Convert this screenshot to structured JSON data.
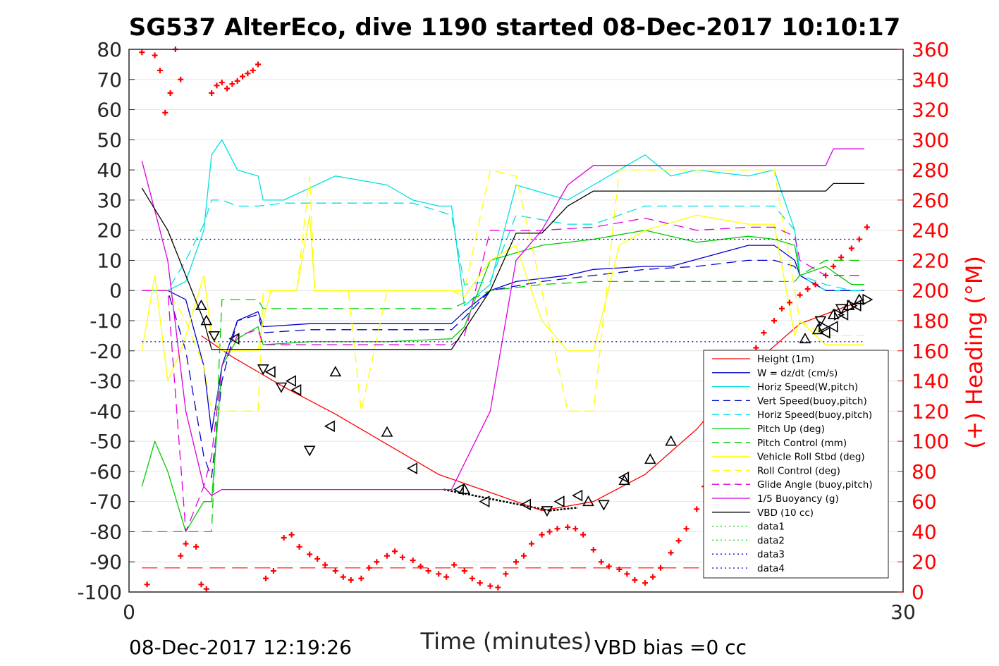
{
  "chart_data": {
    "type": "line",
    "title": "SG537 AlterEco, dive 1190 started 08-Dec-2017 10:10:17",
    "xlabel": "Time (minutes)",
    "ylabel_right": "(+) Heading (°M)",
    "xlim": [
      0,
      30
    ],
    "ylim": [
      -100,
      80
    ],
    "ylim_right": [
      0,
      360
    ],
    "x_ticks": [
      "0",
      "30"
    ],
    "y_ticks": [
      "80",
      "70",
      "60",
      "50",
      "40",
      "30",
      "20",
      "10",
      "0",
      "-10",
      "-20",
      "-30",
      "-40",
      "-50",
      "-60",
      "-70",
      "-80",
      "-90",
      "-100"
    ],
    "y_ticks_right": [
      "360",
      "340",
      "320",
      "300",
      "280",
      "260",
      "240",
      "220",
      "200",
      "180",
      "160",
      "140",
      "120",
      "100",
      "80",
      "60",
      "40",
      "20",
      "0"
    ],
    "grid": "horizontal",
    "legend_position": "bottom-right",
    "colors": {
      "heading": "#ff0000",
      "right_axis": "#ff0000"
    },
    "series": [
      {
        "name": "Height (1m)",
        "color": "#ff0000",
        "dash": "solid",
        "x": [
          2.8,
          4,
          6,
          8,
          10,
          12,
          14,
          16,
          18,
          20,
          22,
          24,
          26,
          28.5
        ],
        "y": [
          -15,
          -22,
          -32,
          -41,
          -51,
          -61,
          -67,
          -73,
          -70,
          -61,
          -46,
          -26,
          -11,
          -3
        ]
      },
      {
        "name": "W = dz/dt (cm/s)",
        "color": "#0000cc",
        "dash": "solid",
        "x": [
          0.5,
          1.5,
          2.2,
          2.9,
          3.2,
          3.6,
          4.2,
          5,
          5.2,
          7,
          10,
          11,
          12.5,
          13,
          14,
          15,
          17,
          18,
          20,
          21,
          24,
          25,
          25.8,
          26,
          27,
          28,
          28.5
        ],
        "y": [
          0,
          0,
          -3,
          -25,
          -47,
          -25,
          -10,
          -7,
          -12,
          -11,
          -11,
          -11,
          -11,
          -7,
          0,
          3,
          5,
          7,
          8,
          8,
          15,
          15,
          10,
          5,
          0,
          0,
          0
        ]
      },
      {
        "name": "Horiz Speed(W,pitch)",
        "color": "#00e0e0",
        "dash": "solid",
        "x": [
          0.5,
          1.5,
          2.2,
          2.9,
          3.2,
          3.6,
          4.2,
          5,
          5.2,
          6,
          8,
          10,
          11,
          12,
          12.5,
          13,
          14,
          15,
          17,
          18,
          20,
          21,
          22,
          24,
          25,
          25.8,
          26,
          27,
          28,
          28.5
        ],
        "y": [
          0,
          0,
          3,
          20,
          45,
          50,
          40,
          38,
          30,
          30,
          38,
          35,
          30,
          28,
          28,
          -5,
          2,
          35,
          30,
          35,
          45,
          38,
          40,
          38,
          40,
          20,
          5,
          0,
          0,
          0
        ]
      },
      {
        "name": "Vert Speed(buoy,pitch)",
        "color": "#0000cc",
        "dash": "dashed",
        "x": [
          0.5,
          1.5,
          2.2,
          2.9,
          3.2,
          3.6,
          4.2,
          5,
          5.2,
          7,
          10,
          12.5,
          13,
          14,
          16,
          18,
          20,
          22,
          24,
          25,
          25.8,
          26,
          27,
          28,
          28.5
        ],
        "y": [
          0,
          0,
          -20,
          -55,
          -62,
          -30,
          -10,
          -8,
          -14,
          -13,
          -13,
          -13,
          -9,
          0,
          3,
          5,
          7,
          8,
          10,
          10,
          8,
          5,
          0,
          0,
          0
        ]
      },
      {
        "name": "Horiz Speed(buoy,pitch)",
        "color": "#00e0e0",
        "dash": "dashed",
        "x": [
          0.5,
          1.5,
          2.2,
          2.9,
          3.2,
          3.6,
          4.2,
          5,
          6,
          8,
          10,
          11,
          12.5,
          13,
          14,
          15,
          17,
          18,
          20,
          22,
          24,
          25,
          25.8,
          26,
          27,
          28,
          28.5
        ],
        "y": [
          0,
          0,
          10,
          22,
          30,
          30,
          28,
          28,
          29,
          29,
          29,
          29,
          25,
          2,
          3,
          25,
          22,
          22,
          28,
          28,
          28,
          28,
          20,
          5,
          2,
          0,
          0
        ]
      },
      {
        "name": "Pitch Up (deg)",
        "color": "#00cc00",
        "dash": "solid",
        "x": [
          0.5,
          1,
          1.5,
          2.2,
          2.9,
          3.2,
          3.6,
          4.2,
          5,
          5.2,
          7,
          10,
          12.5,
          13,
          14,
          16,
          18,
          20,
          22,
          24,
          25,
          25.8,
          26,
          27,
          28,
          28.5
        ],
        "y": [
          -65,
          -50,
          -60,
          -80,
          -70,
          -70,
          -25,
          -16,
          -12,
          -18,
          -17,
          -17,
          -16,
          -12,
          10,
          15,
          17,
          20,
          16,
          18,
          17,
          15,
          5,
          8,
          2,
          2
        ]
      },
      {
        "name": "Pitch Control (mm)",
        "color": "#00cc00",
        "dash": "dashed",
        "x": [
          0.5,
          1.5,
          2.2,
          2.9,
          3.2,
          3.6,
          4.2,
          5,
          5.2,
          7,
          10,
          12.5,
          13,
          14,
          16,
          18,
          20,
          22,
          24,
          25,
          25.8,
          26,
          27,
          28.5
        ],
        "y": [
          -80,
          -80,
          -80,
          -80,
          -80,
          -3,
          -3,
          -3,
          -6,
          -6,
          -6,
          -6,
          -4,
          0,
          2,
          3,
          3,
          3,
          3,
          3,
          3,
          5,
          10,
          10
        ]
      },
      {
        "name": "Vehicle Roll Stbd (deg)",
        "color": "#ffff00",
        "dash": "solid",
        "x": [
          0.5,
          1,
          1.5,
          2,
          2.2,
          2.9,
          3.2,
          3.6,
          4.2,
          5,
          5.2,
          5.5,
          6.5,
          7,
          7.2,
          8.5,
          9,
          12.5,
          13,
          14,
          15,
          16,
          17,
          18,
          19,
          20,
          22,
          24,
          25,
          25.8,
          26,
          27,
          28.5
        ],
        "y": [
          -20,
          5,
          -30,
          -20,
          -15,
          5,
          -15,
          -20,
          -20,
          -20,
          -10,
          0,
          0,
          25,
          0,
          0,
          0,
          0,
          -2,
          10,
          15,
          -10,
          -20,
          -20,
          15,
          20,
          25,
          22,
          22,
          -15,
          -10,
          -18,
          -18
        ]
      },
      {
        "name": "Roll Control (deg)",
        "color": "#ffff00",
        "dash": "dashed",
        "x": [
          0.5,
          1.5,
          2.2,
          2.9,
          3.2,
          3.6,
          4.2,
          5,
          5.2,
          6.5,
          7,
          7.2,
          8.5,
          9,
          10,
          12.5,
          13,
          14,
          15,
          16,
          17,
          18,
          19,
          20,
          22,
          24,
          25,
          25.8,
          26,
          27,
          28.5
        ],
        "y": [
          0,
          0,
          -10,
          -25,
          -40,
          -40,
          -40,
          -40,
          0,
          0,
          38,
          0,
          0,
          -40,
          0,
          0,
          0,
          40,
          38,
          0,
          -40,
          -40,
          40,
          40,
          40,
          40,
          40,
          0,
          -10,
          -15,
          -15
        ]
      },
      {
        "name": "Glide Angle (buoy,pitch)",
        "color": "#dd00dd",
        "dash": "dashed",
        "x": [
          0.5,
          1.5,
          2.2,
          2.9,
          3.2,
          3.6,
          4.2,
          5,
          5.2,
          7,
          10,
          12.5,
          13,
          14,
          16,
          18,
          20,
          22,
          24,
          25,
          25.8,
          26,
          27,
          28.5
        ],
        "y": [
          0,
          0,
          -80,
          -65,
          -55,
          -25,
          -15,
          -13,
          -18,
          -18,
          -18,
          -18,
          -15,
          20,
          20,
          21,
          24,
          20,
          21,
          21,
          18,
          10,
          5,
          5
        ]
      },
      {
        "name": "1/5 Buoyancy (g)",
        "color": "#dd00dd",
        "dash": "solid",
        "x": [
          0.5,
          1.5,
          2.2,
          2.9,
          3.2,
          3.6,
          4.2,
          5,
          10,
          12,
          12.5,
          14,
          15,
          16,
          17,
          18,
          19,
          20,
          24,
          25,
          26,
          27,
          27.3,
          28.5
        ],
        "y": [
          43,
          10,
          -40,
          -65,
          -68,
          -66,
          -66,
          -66,
          -66,
          -66,
          -66,
          -40,
          10,
          20,
          35,
          41.5,
          41.5,
          41.5,
          41.5,
          41.5,
          41.5,
          41.5,
          47,
          47
        ]
      },
      {
        "name": "VBD (10 cc)",
        "color": "#000000",
        "dash": "solid",
        "x": [
          0.5,
          1.5,
          2.2,
          2.9,
          3.2,
          4,
          10,
          12,
          12.5,
          14,
          15,
          16,
          17,
          18,
          19,
          20,
          24,
          25,
          26,
          27,
          27.3,
          28.5
        ],
        "y": [
          34,
          20,
          5,
          -10,
          -19.5,
          -19.5,
          -19.5,
          -19.5,
          -19.5,
          0,
          19,
          19,
          28,
          33,
          33,
          33,
          33,
          33,
          33,
          33,
          35.5,
          35.5
        ]
      },
      {
        "name": "data1",
        "color": "#00cc00",
        "dash": "dotted",
        "x": [],
        "y": []
      },
      {
        "name": "data2",
        "color": "#00cc00",
        "dash": "dotted",
        "x": [],
        "y": []
      },
      {
        "name": "data3",
        "color": "#0000cc",
        "dash": "dotted",
        "x": [
          0.5,
          28.5
        ],
        "y": [
          17,
          17
        ]
      },
      {
        "name": "data4",
        "color": "#0000cc",
        "dash": "dotted",
        "x": [
          0.5,
          28.5
        ],
        "y": [
          -17,
          -17
        ]
      }
    ],
    "extra_lines": [
      {
        "color": "#ff0000",
        "dash": "longdash",
        "x": [
          0.5,
          28.5
        ],
        "y": [
          -92,
          -92
        ]
      },
      {
        "color": "#000000",
        "dash": "dotted-heavy",
        "x": [
          12.2,
          16.3
        ],
        "y": [
          -66,
          -73
        ]
      },
      {
        "color": "#000000",
        "dash": "dotted-heavy",
        "x": [
          16.3,
          17.4
        ],
        "y": [
          -73,
          -72
        ]
      }
    ],
    "heading_points": {
      "axis": "right",
      "color": "#ff0000",
      "x": [
        0.5,
        1,
        1.2,
        1.4,
        1.6,
        1.8,
        2.0,
        2.2,
        2.6,
        2.8,
        3.0,
        3.2,
        3.4,
        3.6,
        3.8,
        4.0,
        4.2,
        4.4,
        4.6,
        4.8,
        5.0,
        0.7,
        2.0,
        5.3,
        5.6,
        6.0,
        6.3,
        6.6,
        7.0,
        7.3,
        7.6,
        8.0,
        8.3,
        8.6,
        9.0,
        9.3,
        9.6,
        10.0,
        10.3,
        10.6,
        11.0,
        11.3,
        11.6,
        12.0,
        12.3,
        12.6,
        13.0,
        13.3,
        13.6,
        14.0,
        14.3,
        14.6,
        15.0,
        15.3,
        15.6,
        16.0,
        16.3,
        16.6,
        17.0,
        17.3,
        17.6,
        18.0,
        18.3,
        18.6,
        19.0,
        19.3,
        19.6,
        20.0,
        20.3,
        20.6,
        21.0,
        21.3,
        21.6,
        22.0,
        22.3,
        22.6,
        23.0,
        23.3,
        23.6,
        24.0,
        24.3,
        24.6,
        25.0,
        25.3,
        25.6,
        26.0,
        26.3,
        26.6,
        27.0,
        27.3,
        27.6,
        28.0,
        28.3,
        28.6
      ],
      "y": [
        358,
        356,
        346,
        318,
        331,
        360,
        340,
        32,
        30,
        5,
        2,
        331,
        336,
        338,
        334,
        337,
        339,
        342,
        344,
        346,
        350,
        5,
        24,
        9,
        14,
        36,
        38,
        30,
        25,
        22,
        18,
        14,
        10,
        8,
        9,
        16,
        20,
        24,
        27,
        23,
        21,
        17,
        14,
        12,
        10,
        18,
        14,
        9,
        6,
        4,
        3,
        12,
        20,
        24,
        32,
        38,
        40,
        42,
        43,
        42,
        38,
        28,
        20,
        17,
        15,
        12,
        8,
        6,
        10,
        16,
        26,
        34,
        42,
        55,
        70,
        85,
        100,
        115,
        130,
        148,
        162,
        172,
        180,
        188,
        192,
        197,
        201,
        204,
        210,
        216,
        222,
        228,
        234,
        242
      ]
    },
    "markers_up": {
      "x": [
        2.8,
        3.0,
        8.0,
        10.0,
        13.0,
        17.8,
        19.2,
        20.2,
        21.0,
        22.5,
        23.6,
        26.2,
        26.7,
        27.3,
        27.9,
        28.3
      ],
      "y": [
        -5,
        -10,
        -27,
        -47,
        -66,
        -70,
        -63,
        -56,
        -50,
        -42,
        -40,
        -16,
        -13,
        -8,
        -5,
        -3
      ]
    },
    "markers_down": {
      "x": [
        3.3,
        5.2,
        5.9,
        7.0,
        16.2,
        18.4,
        24.0,
        25.4,
        26.8,
        27.6
      ],
      "y": [
        -15,
        -26,
        -32,
        -53,
        -73,
        -71,
        -44,
        -25,
        -10,
        -6
      ]
    },
    "markers_left": {
      "x": [
        4.1,
        5.5,
        6.3,
        6.5,
        7.8,
        11.0,
        12.8,
        13.8,
        15.4,
        16.7,
        17.4,
        19.2,
        24.1,
        27.0,
        27.3,
        27.7,
        28.2
      ],
      "y": [
        -16,
        -27,
        -30,
        -33,
        -45,
        -59,
        -66,
        -70,
        -71,
        -70,
        -68,
        -62,
        -41,
        -14,
        -12,
        -8,
        -5
      ]
    },
    "markers_right": {
      "x": [
        26.9,
        27.5,
        28.0,
        28.6
      ],
      "y": [
        -12,
        -8,
        -5,
        -3
      ]
    }
  },
  "footer": {
    "timestamp": "08-Dec-2017 12:19:26",
    "vbd_bias": "VBD bias =0 cc"
  }
}
